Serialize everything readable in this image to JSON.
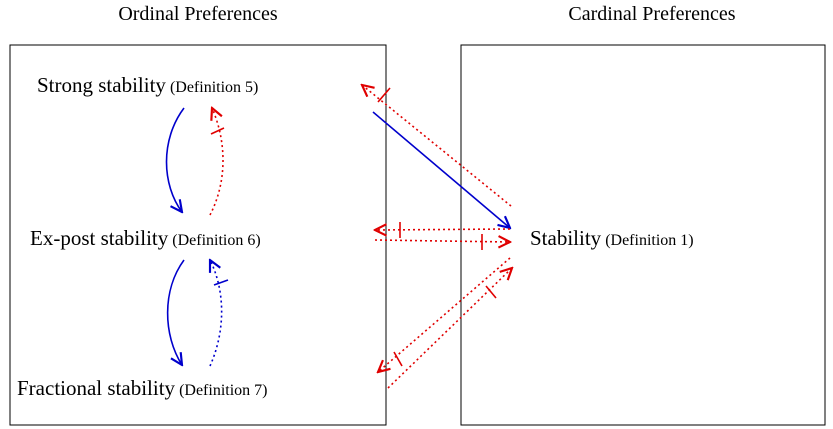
{
  "headers": {
    "left": "Ordinal Preferences",
    "right": "Cardinal Preferences"
  },
  "nodes": [
    {
      "label": "Strong stability",
      "ref": "(Definition 5)"
    },
    {
      "label": "Ex-post stability",
      "ref": "(Definition 6)"
    },
    {
      "label": "Fractional stability",
      "ref": "(Definition 7)"
    },
    {
      "label": "Stability",
      "ref": "(Definition 1)"
    }
  ]
}
